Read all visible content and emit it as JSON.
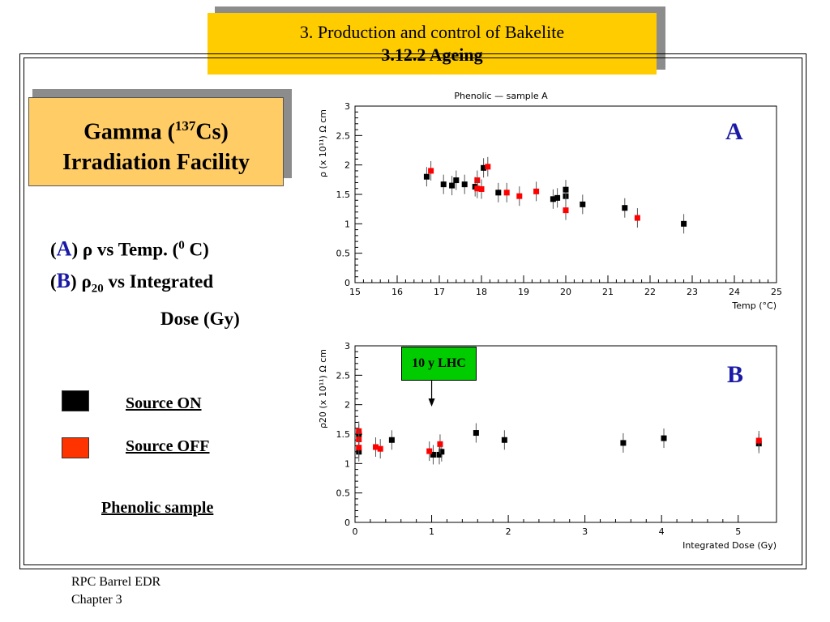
{
  "slide": {
    "title_line1": "3. Production and control of  Bakelite",
    "title_line2": "3.12.2 Ageing",
    "box_line1_prefix": "Gamma (",
    "box_line1_sup": "137",
    "box_line1_suffix": "Cs)",
    "box_line2": "Irradiation Facility",
    "desc_a_letter": "A",
    "desc_a_text": " ρ  vs Temp. (",
    "desc_a_sup": "0",
    "desc_a_end": " C)",
    "desc_b_letter": "B",
    "desc_b_rho": " ρ",
    "desc_b_sub": "20",
    "desc_b_text": "  vs Integrated",
    "desc_b_line2": "Dose (Gy)",
    "legend_on": "Source ON",
    "legend_off": "Source OFF",
    "sample": "Phenolic sample",
    "footer_line1": "RPC Barrel EDR",
    "footer_line2": "Chapter 3"
  },
  "colors": {
    "title_bg": "#ffcc00",
    "box_bg": "#ffcc66",
    "on": "#000000",
    "off": "#ff0000",
    "letter": "#1a1aa6",
    "annotation_bg": "#00cc00"
  },
  "chart_data": [
    {
      "type": "scatter",
      "panel": "A",
      "title": "Phenolic — sample A",
      "xlabel": "Temp (°C)",
      "ylabel": "ρ (x 10¹¹) Ω cm",
      "xlim": [
        15,
        25
      ],
      "ylim": [
        0,
        3
      ],
      "xticks": [
        "15",
        "16",
        "17",
        "18",
        "19",
        "20",
        "21",
        "22",
        "23",
        "24",
        "25"
      ],
      "yticks": [
        "0",
        "0.5",
        "1",
        "1.5",
        "2",
        "2.5",
        "3"
      ],
      "series": [
        {
          "name": "Source ON",
          "color": "#000000",
          "points": [
            [
              16.7,
              1.8
            ],
            [
              17.1,
              1.67
            ],
            [
              17.3,
              1.65
            ],
            [
              17.4,
              1.74
            ],
            [
              17.6,
              1.67
            ],
            [
              17.85,
              1.63
            ],
            [
              18.05,
              1.95
            ],
            [
              18.4,
              1.53
            ],
            [
              19.7,
              1.42
            ],
            [
              19.8,
              1.44
            ],
            [
              20.0,
              1.47
            ],
            [
              20.0,
              1.58
            ],
            [
              20.4,
              1.33
            ],
            [
              21.4,
              1.27
            ],
            [
              22.8,
              1.0
            ]
          ]
        },
        {
          "name": "Source OFF",
          "color": "#ff0000",
          "points": [
            [
              16.8,
              1.9
            ],
            [
              17.9,
              1.74
            ],
            [
              17.9,
              1.6
            ],
            [
              18.0,
              1.59
            ],
            [
              18.15,
              1.97
            ],
            [
              18.6,
              1.53
            ],
            [
              18.9,
              1.47
            ],
            [
              19.3,
              1.55
            ],
            [
              20.0,
              1.23
            ],
            [
              21.7,
              1.1
            ]
          ]
        }
      ]
    },
    {
      "type": "scatter",
      "panel": "B",
      "title": "",
      "xlabel": "Integrated Dose (Gy)",
      "ylabel": "ρ20 (x 10¹¹) Ω cm",
      "xlim": [
        0,
        5.5
      ],
      "ylim": [
        0,
        3
      ],
      "xticks": [
        "0",
        "1",
        "2",
        "3",
        "4",
        "5"
      ],
      "yticks": [
        "0",
        "0.5",
        "1",
        "1.5",
        "2",
        "2.5",
        "3"
      ],
      "annotation": {
        "text": "10 y LHC",
        "x": 1.0
      },
      "series": [
        {
          "name": "Source ON",
          "color": "#000000",
          "points": [
            [
              0.05,
              1.2
            ],
            [
              0.05,
              1.5
            ],
            [
              0.48,
              1.4
            ],
            [
              1.02,
              1.15
            ],
            [
              1.1,
              1.15
            ],
            [
              1.13,
              1.2
            ],
            [
              1.58,
              1.52
            ],
            [
              1.95,
              1.4
            ],
            [
              3.5,
              1.35
            ],
            [
              4.03,
              1.43
            ],
            [
              5.27,
              1.34
            ]
          ]
        },
        {
          "name": "Source OFF",
          "color": "#ff0000",
          "points": [
            [
              0.05,
              1.55
            ],
            [
              0.05,
              1.41
            ],
            [
              0.05,
              1.27
            ],
            [
              0.27,
              1.28
            ],
            [
              0.33,
              1.25
            ],
            [
              0.97,
              1.21
            ],
            [
              1.11,
              1.33
            ],
            [
              5.27,
              1.39
            ]
          ]
        }
      ]
    }
  ]
}
